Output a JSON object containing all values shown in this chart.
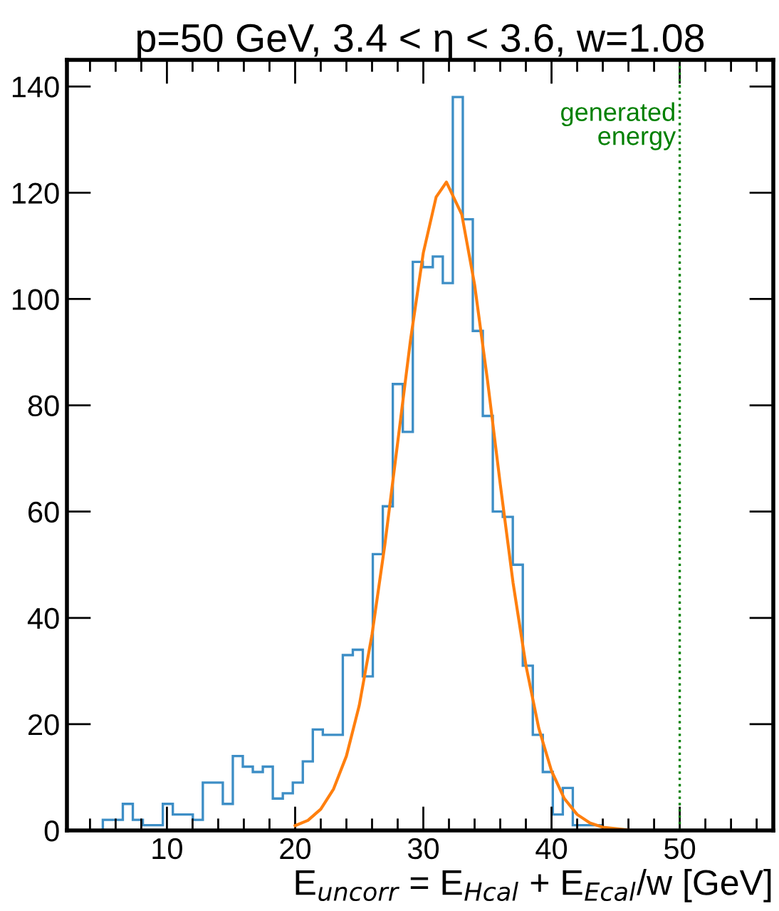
{
  "chart_data": {
    "type": "histogram",
    "title": "p=50 GeV, 3.4 < η < 3.6, w=1.08",
    "xlabel": "E$_{uncorr}$ = E$_{Hcal}$ + E$_{Ecal}$/w [GeV]",
    "xlim": [
      2.2,
      57.3
    ],
    "xticks": [
      10,
      20,
      30,
      40,
      50
    ],
    "ylim": [
      0,
      145
    ],
    "yticks": [
      0,
      20,
      40,
      60,
      80,
      100,
      120,
      140
    ],
    "grid": false,
    "legend": false,
    "series": [
      {
        "color": "#3d8ec6",
        "bins": [
          5,
          5.78,
          6.56,
          7.34,
          8.12,
          8.9,
          9.68,
          10.46,
          11.24,
          12.02,
          12.8,
          13.58,
          14.36,
          15.14,
          15.92,
          16.7,
          17.48,
          18.26,
          19.04,
          19.82,
          20.6,
          21.38,
          22.16,
          22.94,
          23.72,
          24.5,
          25.28,
          26.06,
          26.84,
          27.62,
          28.4,
          29.18,
          29.96,
          30.74,
          31.52,
          32.3,
          33.08,
          33.86,
          34.64,
          35.42,
          36.2,
          36.98,
          37.76,
          38.54,
          39.32,
          40.1,
          40.88,
          41.66,
          42.44,
          43.22,
          44
        ],
        "values": [
          2,
          2,
          5,
          2,
          1,
          1,
          5,
          3,
          3,
          2,
          9,
          9,
          5,
          14,
          12,
          11,
          12,
          6,
          7,
          9,
          13,
          19,
          18,
          18,
          33,
          34,
          29,
          52,
          61,
          84,
          75,
          107,
          106,
          108,
          103,
          138,
          115,
          94,
          78,
          60,
          59,
          50,
          31,
          18,
          11,
          3,
          8,
          1,
          1,
          1
        ]
      },
      {
        "type": "line",
        "color": "#ff7f0e",
        "marker": "none",
        "line_style": "solid",
        "x": [
          20,
          21,
          22,
          23,
          24,
          25,
          26,
          27,
          28,
          29,
          30,
          31,
          31.8,
          33,
          34,
          35,
          36,
          37,
          38,
          39,
          40,
          41,
          42,
          43,
          44,
          46
        ],
        "values": [
          0.9,
          1.9,
          4.0,
          7.8,
          14.0,
          23.5,
          36.9,
          53.8,
          73.0,
          92.3,
          108.7,
          119.2,
          122,
          115.9,
          102.7,
          84.8,
          65.2,
          46.6,
          31.1,
          19.3,
          11.2,
          6.0,
          3.0,
          1.4,
          0.6,
          0.1
        ]
      }
    ],
    "ref_lines": [
      {
        "axis": "x",
        "value": 50,
        "label": "generated\nenergy",
        "color": "#008000",
        "line_style": "dotted"
      }
    ]
  }
}
